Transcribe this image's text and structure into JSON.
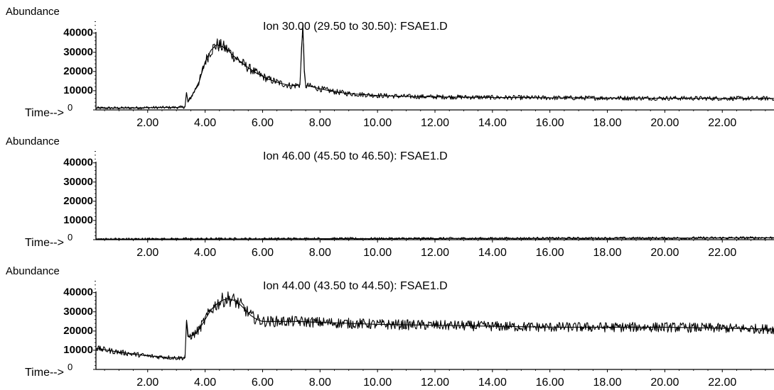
{
  "chart_data": [
    {
      "type": "line",
      "title": "Ion  30.00 (29.50 to 30.50): FSAE1.D",
      "ylabel": "Abundance",
      "xlabel": "Time-->",
      "xlim": [
        0.2,
        23.8
      ],
      "ylim": [
        0,
        48000
      ],
      "x_ticks": [
        "2.00",
        "4.00",
        "6.00",
        "8.00",
        "10.00",
        "12.00",
        "14.00",
        "16.00",
        "18.00",
        "20.00",
        "22.00"
      ],
      "y_ticks": [
        "0",
        "10000",
        "20000",
        "30000",
        "40000"
      ],
      "series": [
        {
          "x": [
            0.2,
            1.0,
            2.0,
            3.0,
            3.3,
            3.35,
            3.4,
            3.6,
            3.8,
            4.0,
            4.2,
            4.4,
            4.6,
            4.8,
            5.0,
            5.4,
            5.8,
            6.2,
            6.6,
            7.0,
            7.3,
            7.4,
            7.45,
            7.5,
            7.6,
            8.0,
            8.5,
            9.0,
            9.5,
            10.0,
            11.0,
            12.0,
            14.0,
            16.0,
            18.0,
            20.0,
            22.0,
            23.8
          ],
          "values": [
            1000,
            1000,
            1200,
            1300,
            1500,
            9000,
            4000,
            9000,
            15000,
            25000,
            31000,
            34000,
            33000,
            31000,
            28000,
            23000,
            19000,
            16000,
            14000,
            12500,
            13000,
            45000,
            20000,
            12500,
            12500,
            11000,
            9500,
            8500,
            8000,
            7500,
            7000,
            6800,
            6500,
            6300,
            6200,
            6100,
            6000,
            6000
          ]
        }
      ]
    },
    {
      "type": "line",
      "title": "Ion  46.00 (45.50 to 46.50): FSAE1.D",
      "ylabel": "Abundance",
      "xlabel": "Time-->",
      "xlim": [
        0.2,
        23.8
      ],
      "ylim": [
        0,
        48000
      ],
      "x_ticks": [
        "2.00",
        "4.00",
        "6.00",
        "8.00",
        "10.00",
        "12.00",
        "14.00",
        "16.00",
        "18.00",
        "20.00",
        "22.00"
      ],
      "y_ticks": [
        "0",
        "10000",
        "20000",
        "30000",
        "40000"
      ],
      "series": [
        {
          "x": [
            0.2,
            2.0,
            4.0,
            6.0,
            8.0,
            10.0,
            12.0,
            14.0,
            16.0,
            18.0,
            20.0,
            22.0,
            23.8
          ],
          "values": [
            300,
            350,
            400,
            450,
            500,
            550,
            600,
            650,
            700,
            750,
            800,
            900,
            1000
          ]
        }
      ]
    },
    {
      "type": "line",
      "title": "Ion  44.00 (43.50 to 44.50): FSAE1.D",
      "ylabel": "Abundance",
      "xlabel": "Time-->",
      "xlim": [
        0.2,
        23.8
      ],
      "ylim": [
        0,
        48000
      ],
      "x_ticks": [
        "2.00",
        "4.00",
        "6.00",
        "8.00",
        "10.00",
        "12.00",
        "14.00",
        "16.00",
        "18.00",
        "20.00",
        "22.00"
      ],
      "y_ticks": [
        "0",
        "10000",
        "20000",
        "30000",
        "40000"
      ],
      "series": [
        {
          "x": [
            0.2,
            1.0,
            2.0,
            3.0,
            3.3,
            3.35,
            3.4,
            3.6,
            3.8,
            4.0,
            4.2,
            4.4,
            4.6,
            4.8,
            5.0,
            5.2,
            5.4,
            5.6,
            5.8,
            6.0,
            6.4,
            6.8,
            7.2,
            8.0,
            9.0,
            10.0,
            12.0,
            14.0,
            16.0,
            18.0,
            20.0,
            22.0,
            23.8
          ],
          "values": [
            11000,
            9000,
            7000,
            6000,
            6000,
            25000,
            17000,
            18000,
            21000,
            26000,
            31000,
            34000,
            36000,
            37000,
            36000,
            34000,
            31000,
            28000,
            26000,
            25000,
            25000,
            25000,
            25000,
            24500,
            24000,
            23500,
            23000,
            22500,
            22000,
            22000,
            22000,
            21500,
            21000
          ]
        }
      ]
    }
  ]
}
